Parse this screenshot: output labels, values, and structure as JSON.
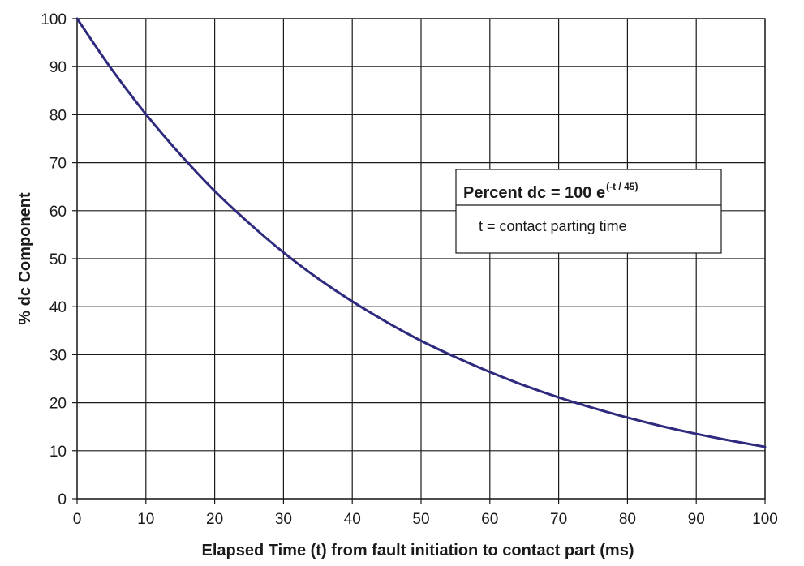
{
  "chart_data": {
    "type": "line",
    "xlabel": "Elapsed Time (t) from fault initiation to contact part (ms)",
    "ylabel": "% dc Component",
    "xlim": [
      0,
      100
    ],
    "ylim": [
      0,
      100
    ],
    "x_ticks": [
      "0",
      "10",
      "20",
      "30",
      "40",
      "50",
      "60",
      "70",
      "80",
      "90",
      "100"
    ],
    "y_ticks": [
      "0",
      "10",
      "20",
      "30",
      "40",
      "50",
      "60",
      "70",
      "80",
      "90",
      "100"
    ],
    "grid": true,
    "colors": {
      "series": "#2e2a7e",
      "grid": "#1a1a1a"
    },
    "series": [
      {
        "x": [
          0,
          5,
          10,
          15,
          20,
          25,
          30,
          35,
          40,
          45,
          50,
          55,
          60,
          65,
          70,
          75,
          80,
          85,
          90,
          95,
          100
        ],
        "y": [
          100,
          89.5,
          80.1,
          71.7,
          64.1,
          57.4,
          51.3,
          45.9,
          41.1,
          36.8,
          32.9,
          29.5,
          26.4,
          23.6,
          21.1,
          18.9,
          16.9,
          15.1,
          13.5,
          12.1,
          10.8
        ]
      }
    ],
    "annotation": {
      "formula_main": "Percent dc = 100 e",
      "formula_exponent": "(-t / 45)",
      "note": "t = contact parting time",
      "placement": "center-right"
    }
  }
}
